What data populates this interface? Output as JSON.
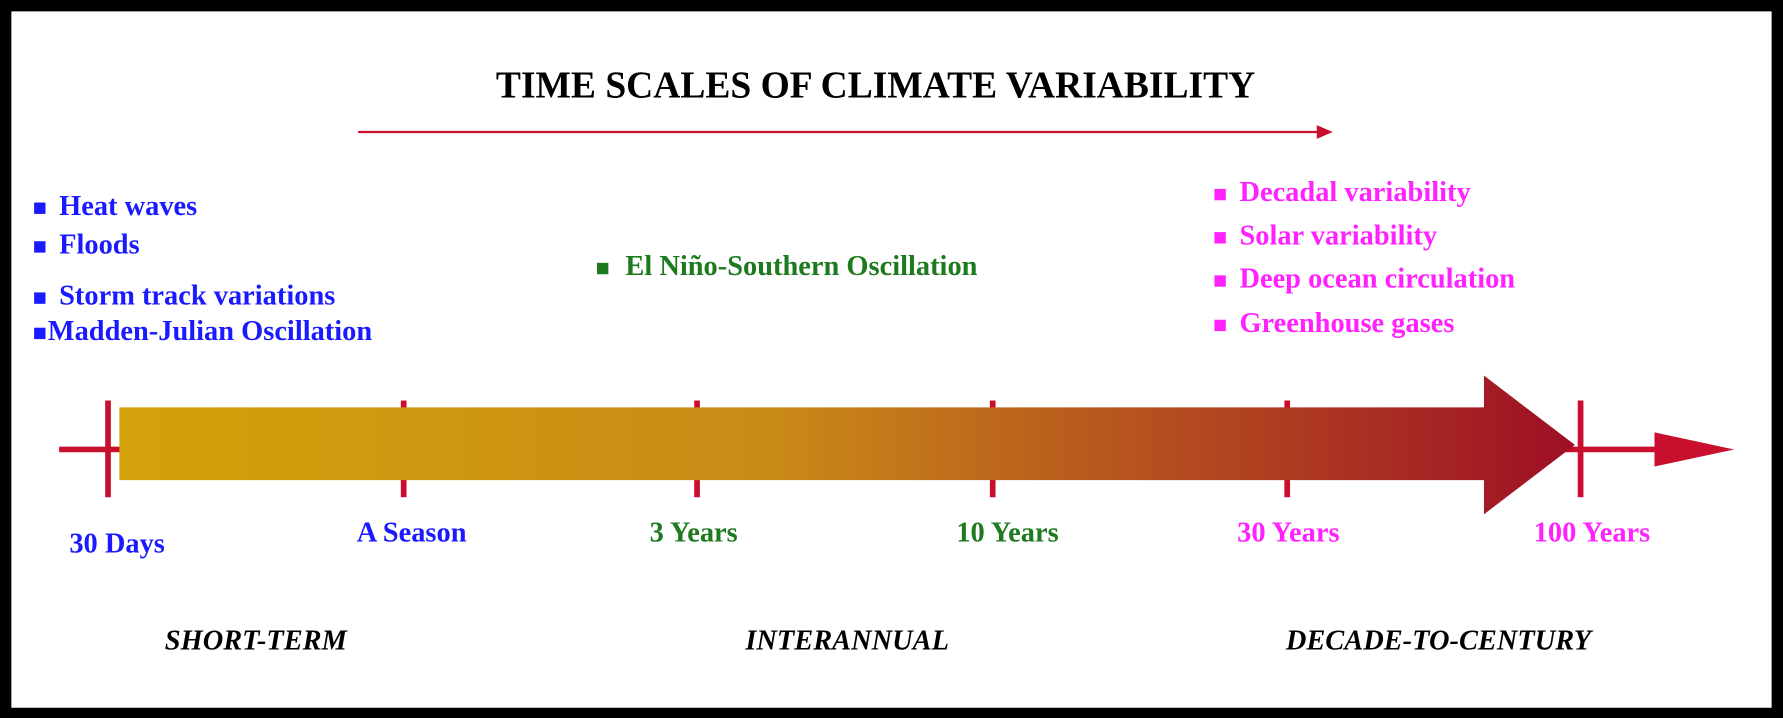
{
  "title": "TIME SCALES OF CLIMATE VARIABILITY",
  "short_term_items": [
    "Heat waves",
    "Floods",
    "Storm track variations",
    "Madden-Julian Oscillation"
  ],
  "interannual_items": [
    "El Niño-Southern Oscillation"
  ],
  "decadal_items": [
    "Decadal variability",
    "Solar variability",
    "Deep ocean circulation",
    "Greenhouse gases"
  ],
  "timeline": [
    "30 Days",
    "A Season",
    "3 Years",
    "10 Years",
    "30 Years",
    "100 Years"
  ],
  "categories": [
    "SHORT-TERM",
    "INTERANNUAL",
    "DECADE-TO-CENTURY"
  ]
}
